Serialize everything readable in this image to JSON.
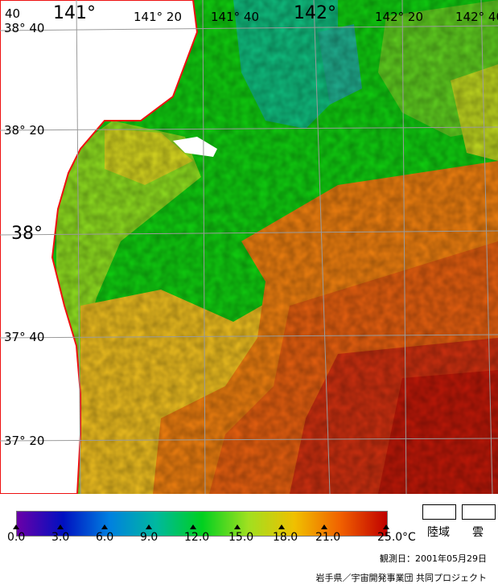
{
  "map": {
    "lon_labels": [
      {
        "text": "141°",
        "style": "big"
      },
      {
        "text": "141° 20",
        "style": "small"
      },
      {
        "text": "141° 40",
        "style": "small"
      },
      {
        "text": "142°",
        "style": "big"
      },
      {
        "text": "142° 20",
        "style": "small"
      },
      {
        "text": "142° 40",
        "style": "small"
      }
    ],
    "lat_labels": [
      {
        "text": "38° 40",
        "style": "small"
      },
      {
        "text": "38° 20",
        "style": "small"
      },
      {
        "text": "38°",
        "style": "big"
      },
      {
        "text": "37° 40",
        "style": "small"
      },
      {
        "text": "37° 20",
        "style": "small"
      }
    ],
    "corner_label": "40"
  },
  "legend": {
    "ticks": [
      "0.0",
      "3.0",
      "6.0",
      "9.0",
      "12.0",
      "15.0",
      "18.0",
      "21.0",
      "25.0"
    ],
    "unit": "°C",
    "land_label": "陸域",
    "cloud_label": "雲",
    "colors": {
      "c0": "#6a00a8",
      "c3": "#0010c0",
      "c6": "#0080e0",
      "c9": "#00b8a0",
      "c12": "#00d020",
      "c15": "#a0e020",
      "c18": "#f0c000",
      "c21": "#f06000",
      "c25": "#c00000"
    }
  },
  "footer": {
    "date": "観測日：2001年05月29日",
    "credit": "岩手県／宇宙開発事業団 共同プロジェクト"
  }
}
